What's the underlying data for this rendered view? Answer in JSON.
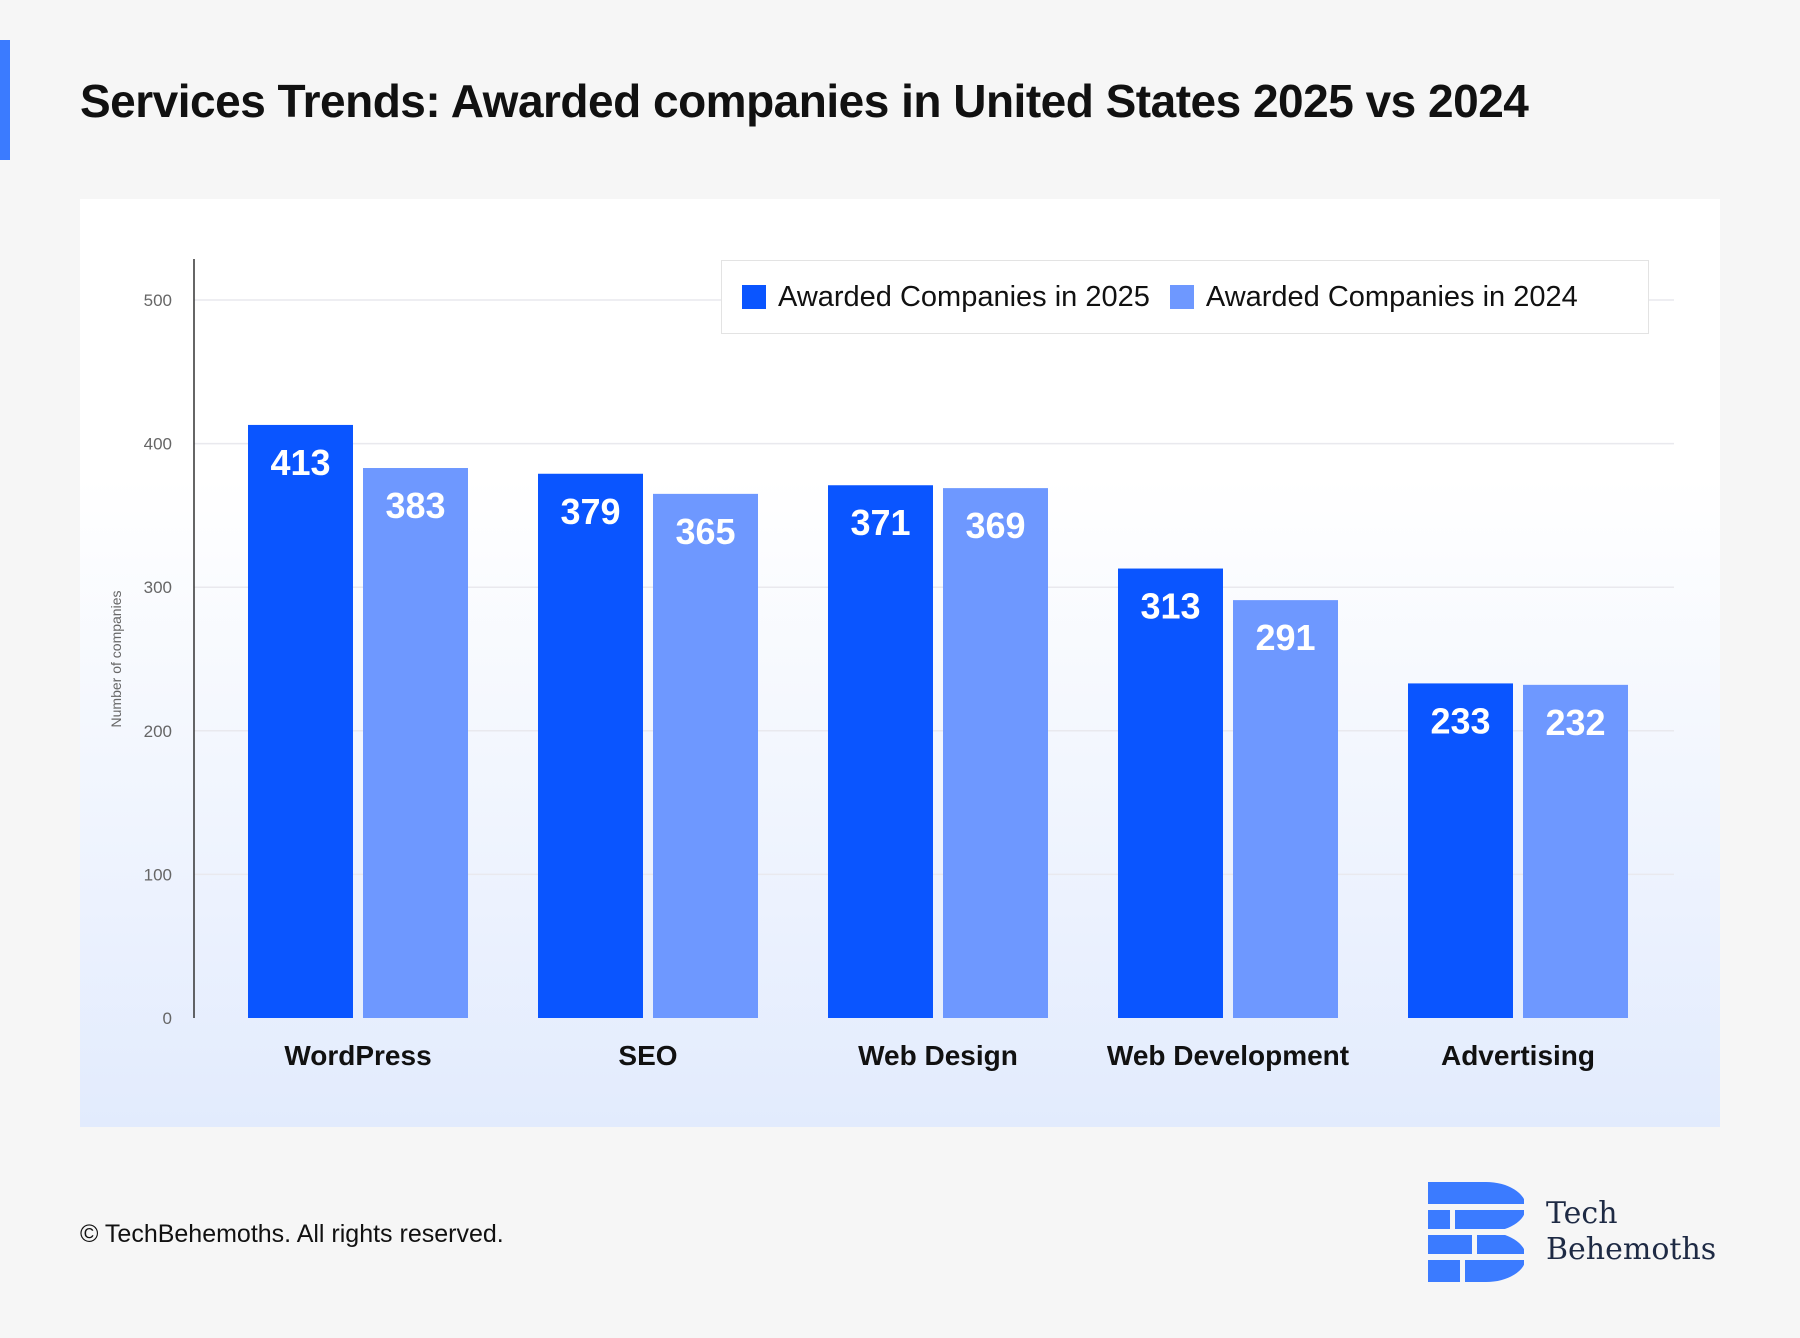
{
  "title": "Services Trends: Awarded companies in United States 2025 vs 2024",
  "footer": "© TechBehemoths. All rights reserved.",
  "logo": {
    "line1": "Tech",
    "line2": "Behemoths",
    "icon": "techbehemoths-logo-icon"
  },
  "colors": {
    "accent": "#3b7bff",
    "series2025": "#0a55ff",
    "series2024": "#6e98ff"
  },
  "chart_data": {
    "type": "bar",
    "title": "Services Trends: Awarded companies in United States 2025 vs 2024",
    "xlabel": "",
    "ylabel": "Number of companies",
    "ylim": [
      0,
      500
    ],
    "yticks": [
      0,
      100,
      200,
      300,
      400,
      500
    ],
    "grid": true,
    "legend_position": "top-right",
    "categories": [
      "WordPress",
      "SEO",
      "Web Design",
      "Web Development",
      "Advertising"
    ],
    "series": [
      {
        "name": "Awarded Companies in 2025",
        "color": "#0a55ff",
        "values": [
          413,
          379,
          371,
          313,
          233
        ]
      },
      {
        "name": "Awarded Companies in 2024",
        "color": "#6e98ff",
        "values": [
          383,
          365,
          369,
          291,
          232
        ]
      }
    ]
  }
}
